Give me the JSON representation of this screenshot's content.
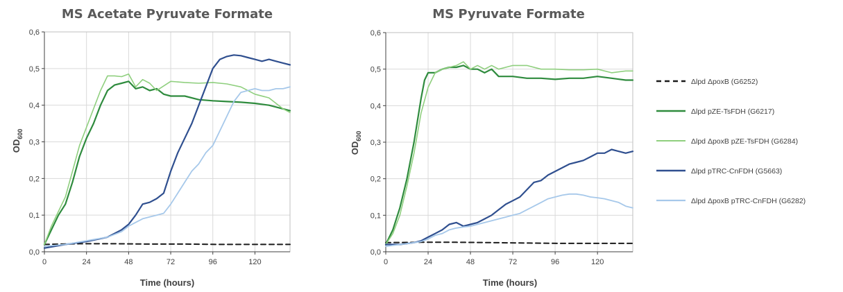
{
  "chart_data": [
    {
      "type": "line",
      "title": "MS Acetate Pyruvate Formate",
      "xlabel": "Time (hours)",
      "ylabel": "OD600",
      "ylabel_main": "OD",
      "ylabel_sub": "600",
      "xlim": [
        0,
        140
      ],
      "ylim": [
        0,
        0.6
      ],
      "xticks": [
        0,
        24,
        48,
        72,
        96,
        120
      ],
      "xtick_labels": [
        "0",
        "24",
        "48",
        "72",
        "96",
        "120"
      ],
      "yticks": [
        0,
        0.1,
        0.2,
        0.3,
        0.4,
        0.5,
        0.6
      ],
      "ytick_labels": [
        "0,0",
        "0,1",
        "0,2",
        "0,3",
        "0,4",
        "0,5",
        "0,6"
      ],
      "grid": true,
      "series": [
        {
          "name": "Δlpd ΔpoxB (G6252)",
          "color": "#1a1a1a",
          "dash": true,
          "width": 2,
          "x": [
            0,
            20,
            40,
            60,
            80,
            100,
            120,
            140
          ],
          "y": [
            0.02,
            0.022,
            0.022,
            0.021,
            0.021,
            0.02,
            0.02,
            0.02
          ]
        },
        {
          "name": "Δlpd pZE-TsFDH (G6217)",
          "color": "#2e8b3d",
          "dash": false,
          "width": 2.2,
          "x": [
            0,
            4,
            8,
            12,
            16,
            20,
            24,
            28,
            32,
            36,
            40,
            44,
            48,
            52,
            56,
            60,
            64,
            68,
            72,
            80,
            88,
            96,
            104,
            112,
            120,
            128,
            136,
            140
          ],
          "y": [
            0.02,
            0.06,
            0.1,
            0.13,
            0.19,
            0.26,
            0.31,
            0.35,
            0.4,
            0.44,
            0.455,
            0.46,
            0.465,
            0.445,
            0.45,
            0.44,
            0.445,
            0.43,
            0.425,
            0.425,
            0.415,
            0.412,
            0.41,
            0.408,
            0.405,
            0.4,
            0.39,
            0.385
          ]
        },
        {
          "name": "Δlpd ΔpoxB pZE-TsFDH (G6284)",
          "color": "#8fcf7e",
          "dash": false,
          "width": 1.6,
          "x": [
            0,
            4,
            8,
            12,
            16,
            20,
            24,
            28,
            32,
            36,
            40,
            44,
            48,
            52,
            56,
            60,
            64,
            72,
            80,
            88,
            96,
            104,
            112,
            120,
            128,
            136,
            140
          ],
          "y": [
            0.02,
            0.07,
            0.11,
            0.15,
            0.22,
            0.29,
            0.34,
            0.39,
            0.44,
            0.48,
            0.48,
            0.478,
            0.485,
            0.45,
            0.47,
            0.46,
            0.44,
            0.465,
            0.462,
            0.46,
            0.462,
            0.458,
            0.45,
            0.43,
            0.42,
            0.39,
            0.38
          ]
        },
        {
          "name": "Δlpd pTRC-CnFDH (G5663)",
          "color": "#2f4f8f",
          "dash": false,
          "width": 2.2,
          "x": [
            0,
            12,
            24,
            36,
            44,
            48,
            52,
            56,
            60,
            64,
            68,
            72,
            76,
            80,
            84,
            88,
            92,
            96,
            100,
            104,
            108,
            112,
            116,
            120,
            124,
            128,
            132,
            136,
            140
          ],
          "y": [
            0.01,
            0.02,
            0.028,
            0.04,
            0.06,
            0.075,
            0.1,
            0.13,
            0.135,
            0.145,
            0.16,
            0.22,
            0.27,
            0.31,
            0.35,
            0.4,
            0.45,
            0.5,
            0.525,
            0.533,
            0.537,
            0.535,
            0.53,
            0.525,
            0.52,
            0.525,
            0.52,
            0.515,
            0.51
          ]
        },
        {
          "name": "Δlpd ΔpoxB pTRC-CnFDH (G6282)",
          "color": "#a6c8ea",
          "dash": false,
          "width": 1.8,
          "x": [
            0,
            12,
            24,
            36,
            44,
            48,
            52,
            56,
            60,
            64,
            68,
            72,
            76,
            80,
            84,
            88,
            92,
            96,
            100,
            104,
            108,
            112,
            116,
            120,
            124,
            128,
            132,
            136,
            140
          ],
          "y": [
            0.015,
            0.02,
            0.03,
            0.04,
            0.055,
            0.07,
            0.08,
            0.09,
            0.095,
            0.1,
            0.105,
            0.13,
            0.16,
            0.19,
            0.22,
            0.24,
            0.27,
            0.29,
            0.33,
            0.37,
            0.41,
            0.435,
            0.44,
            0.445,
            0.44,
            0.44,
            0.445,
            0.445,
            0.45
          ]
        }
      ]
    },
    {
      "type": "line",
      "title": "MS Pyruvate Formate",
      "xlabel": "Time (hours)",
      "ylabel": "OD600",
      "ylabel_main": "OD",
      "ylabel_sub": "600",
      "xlim": [
        0,
        140
      ],
      "ylim": [
        0,
        0.6
      ],
      "xticks": [
        0,
        24,
        48,
        72,
        96,
        120
      ],
      "xtick_labels": [
        "0",
        "24",
        "48",
        "72",
        "96",
        "120"
      ],
      "yticks": [
        0,
        0.1,
        0.2,
        0.3,
        0.4,
        0.5,
        0.6
      ],
      "ytick_labels": [
        "0,0",
        "0,1",
        "0,2",
        "0,3",
        "0,4",
        "0,5",
        "0,6"
      ],
      "grid": true,
      "series": [
        {
          "name": "Δlpd ΔpoxB (G6252)",
          "color": "#1a1a1a",
          "dash": true,
          "width": 2,
          "x": [
            0,
            20,
            40,
            60,
            80,
            100,
            120,
            140
          ],
          "y": [
            0.025,
            0.026,
            0.026,
            0.025,
            0.024,
            0.023,
            0.023,
            0.023
          ]
        },
        {
          "name": "Δlpd pZE-TsFDH (G6217)",
          "color": "#2e8b3d",
          "dash": false,
          "width": 2.2,
          "x": [
            0,
            4,
            8,
            12,
            16,
            20,
            22,
            24,
            28,
            32,
            36,
            40,
            44,
            48,
            52,
            56,
            60,
            64,
            72,
            80,
            88,
            96,
            104,
            112,
            120,
            128,
            136,
            140
          ],
          "y": [
            0.02,
            0.06,
            0.12,
            0.2,
            0.3,
            0.42,
            0.47,
            0.49,
            0.49,
            0.5,
            0.505,
            0.505,
            0.51,
            0.5,
            0.5,
            0.49,
            0.5,
            0.48,
            0.48,
            0.475,
            0.475,
            0.472,
            0.475,
            0.475,
            0.48,
            0.475,
            0.47,
            0.47
          ]
        },
        {
          "name": "Δlpd ΔpoxB pZE-TsFDH (G6284)",
          "color": "#8fcf7e",
          "dash": false,
          "width": 1.6,
          "x": [
            0,
            4,
            8,
            12,
            16,
            20,
            24,
            28,
            32,
            36,
            40,
            44,
            48,
            52,
            56,
            60,
            64,
            72,
            80,
            88,
            96,
            104,
            112,
            120,
            128,
            136,
            140
          ],
          "y": [
            0.02,
            0.05,
            0.1,
            0.18,
            0.27,
            0.38,
            0.45,
            0.49,
            0.5,
            0.505,
            0.51,
            0.52,
            0.5,
            0.51,
            0.5,
            0.51,
            0.5,
            0.51,
            0.51,
            0.5,
            0.5,
            0.498,
            0.498,
            0.5,
            0.49,
            0.495,
            0.495
          ]
        },
        {
          "name": "Δlpd pTRC-CnFDH (G5663)",
          "color": "#2f4f8f",
          "dash": false,
          "width": 2.2,
          "x": [
            0,
            8,
            16,
            20,
            24,
            28,
            32,
            36,
            40,
            44,
            48,
            52,
            56,
            60,
            64,
            68,
            72,
            76,
            80,
            84,
            88,
            92,
            96,
            100,
            104,
            108,
            112,
            116,
            120,
            124,
            128,
            132,
            136,
            140
          ],
          "y": [
            0.02,
            0.02,
            0.025,
            0.03,
            0.04,
            0.05,
            0.06,
            0.075,
            0.08,
            0.07,
            0.075,
            0.08,
            0.09,
            0.1,
            0.115,
            0.13,
            0.14,
            0.15,
            0.17,
            0.19,
            0.195,
            0.21,
            0.22,
            0.23,
            0.24,
            0.245,
            0.25,
            0.26,
            0.27,
            0.27,
            0.28,
            0.275,
            0.27,
            0.275
          ]
        },
        {
          "name": "Δlpd ΔpoxB pTRC-CnFDH (G6282)",
          "color": "#a6c8ea",
          "dash": false,
          "width": 1.8,
          "x": [
            0,
            8,
            16,
            20,
            24,
            28,
            32,
            36,
            40,
            44,
            48,
            52,
            56,
            60,
            64,
            68,
            72,
            76,
            80,
            84,
            88,
            92,
            96,
            100,
            104,
            108,
            112,
            116,
            120,
            124,
            128,
            132,
            136,
            140
          ],
          "y": [
            0.015,
            0.02,
            0.025,
            0.028,
            0.035,
            0.045,
            0.05,
            0.06,
            0.065,
            0.068,
            0.07,
            0.075,
            0.08,
            0.085,
            0.09,
            0.095,
            0.1,
            0.105,
            0.115,
            0.125,
            0.135,
            0.145,
            0.15,
            0.155,
            0.158,
            0.158,
            0.155,
            0.15,
            0.148,
            0.145,
            0.14,
            0.135,
            0.125,
            0.12
          ]
        }
      ]
    }
  ],
  "legend": {
    "position": "right",
    "items": [
      {
        "name": "Δlpd ΔpoxB (G6252)",
        "color": "#1a1a1a",
        "dash": true,
        "width": 2
      },
      {
        "name": "Δlpd pZE-TsFDH (G6217)",
        "color": "#2e8b3d",
        "dash": false,
        "width": 2.2
      },
      {
        "name": "Δlpd ΔpoxB pZE-TsFDH (G6284)",
        "color": "#8fcf7e",
        "dash": false,
        "width": 1.6
      },
      {
        "name": "Δlpd pTRC-CnFDH (G5663)",
        "color": "#2f4f8f",
        "dash": false,
        "width": 2.2
      },
      {
        "name": "Δlpd ΔpoxB pTRC-CnFDH (G6282)",
        "color": "#a6c8ea",
        "dash": false,
        "width": 1.8
      }
    ]
  }
}
